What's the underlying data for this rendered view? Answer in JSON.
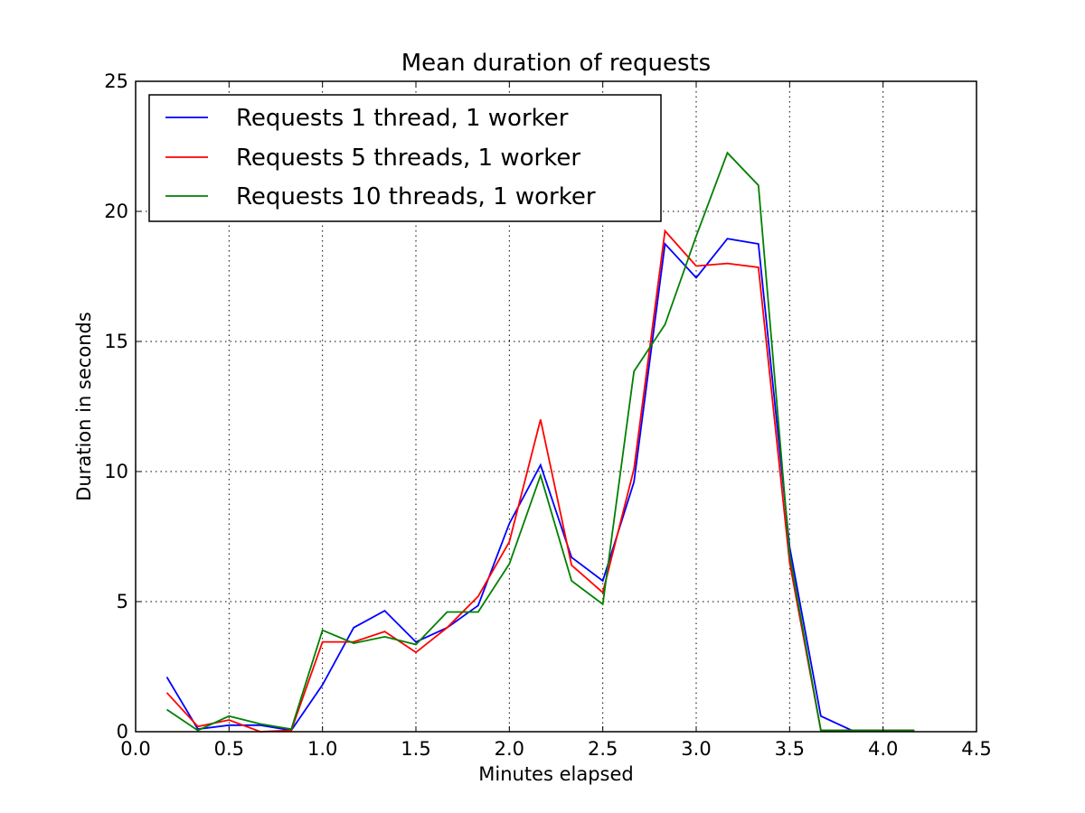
{
  "chart_data": {
    "type": "line",
    "title": "Mean duration of requests",
    "xlabel": "Minutes elapsed",
    "ylabel": "Duration in seconds",
    "xlim": [
      0.0,
      4.5
    ],
    "ylim": [
      0,
      25
    ],
    "xticks": [
      0.0,
      0.5,
      1.0,
      1.5,
      2.0,
      2.5,
      3.0,
      3.5,
      4.0,
      4.5
    ],
    "xtick_labels": [
      "0.0",
      "0.5",
      "1.0",
      "1.5",
      "2.0",
      "2.5",
      "3.0",
      "3.5",
      "4.0",
      "4.5"
    ],
    "yticks": [
      0,
      5,
      10,
      15,
      20,
      25
    ],
    "ytick_labels": [
      "0",
      "5",
      "10",
      "15",
      "20",
      "25"
    ],
    "grid": true,
    "legend_position": "top-left",
    "x": [
      0.167,
      0.333,
      0.5,
      0.667,
      0.833,
      1.0,
      1.167,
      1.333,
      1.5,
      1.667,
      1.833,
      2.0,
      2.167,
      2.333,
      2.5,
      2.667,
      2.833,
      3.0,
      3.167,
      3.333,
      3.5,
      3.667,
      3.833,
      4.0,
      4.167
    ],
    "series": [
      {
        "name": "Requests 1 thread, 1 worker",
        "color": "#0000ff",
        "values": [
          2.1,
          0.1,
          0.25,
          0.25,
          0.05,
          1.8,
          4.0,
          4.65,
          3.45,
          4.0,
          4.85,
          8.0,
          10.25,
          6.7,
          5.8,
          9.6,
          18.75,
          17.45,
          18.95,
          18.75,
          7.1,
          0.6,
          0.05,
          0.05,
          0.05
        ]
      },
      {
        "name": "Requests 5 threads, 1 worker",
        "color": "#ff0000",
        "values": [
          1.5,
          0.2,
          0.45,
          0.0,
          0.05,
          3.45,
          3.45,
          3.85,
          3.05,
          4.0,
          5.2,
          7.3,
          12.0,
          6.4,
          5.35,
          10.1,
          19.25,
          17.9,
          18.0,
          17.85,
          6.5,
          0.05,
          0.05,
          0.05,
          0.05
        ]
      },
      {
        "name": "Requests 10 threads, 1 worker",
        "color": "#008000",
        "values": [
          0.85,
          0.05,
          0.6,
          0.3,
          0.1,
          3.9,
          3.4,
          3.65,
          3.35,
          4.6,
          4.6,
          6.45,
          9.85,
          5.8,
          4.9,
          13.85,
          15.65,
          19.05,
          22.25,
          21.0,
          6.8,
          0.05,
          0.05,
          0.05,
          0.05
        ]
      }
    ]
  }
}
